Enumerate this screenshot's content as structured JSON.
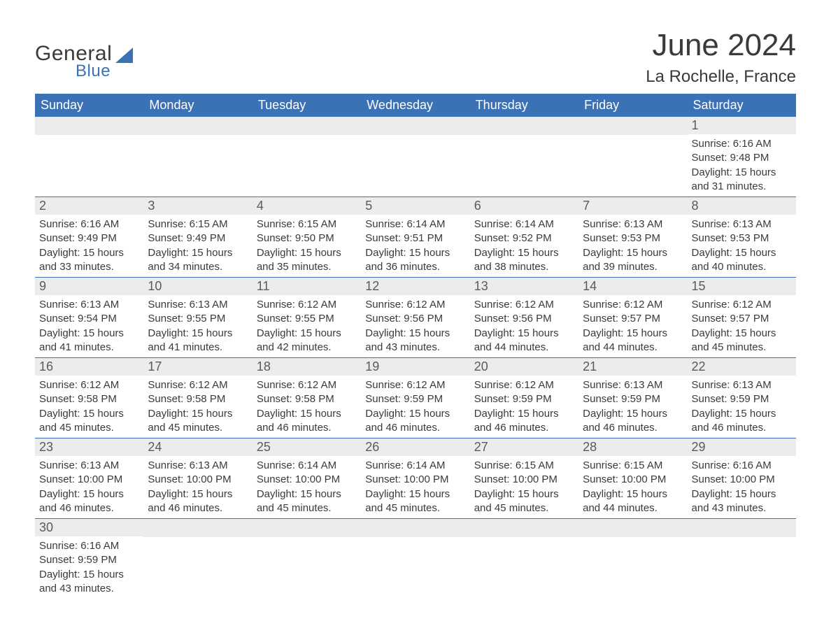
{
  "logo": {
    "text1": "General",
    "text2": "Blue"
  },
  "title": "June 2024",
  "location": "La Rochelle, France",
  "colors": {
    "header_bg": "#3a72b5",
    "header_text": "#ffffff",
    "daynum_bg": "#ececec",
    "row_border": "#3a72b5",
    "body_text": "#3a3a3a"
  },
  "dayHeaders": [
    "Sunday",
    "Monday",
    "Tuesday",
    "Wednesday",
    "Thursday",
    "Friday",
    "Saturday"
  ],
  "weeks": [
    [
      null,
      null,
      null,
      null,
      null,
      null,
      {
        "n": "1",
        "sunrise": "Sunrise: 6:16 AM",
        "sunset": "Sunset: 9:48 PM",
        "daylight": "Daylight: 15 hours and 31 minutes."
      }
    ],
    [
      {
        "n": "2",
        "sunrise": "Sunrise: 6:16 AM",
        "sunset": "Sunset: 9:49 PM",
        "daylight": "Daylight: 15 hours and 33 minutes."
      },
      {
        "n": "3",
        "sunrise": "Sunrise: 6:15 AM",
        "sunset": "Sunset: 9:49 PM",
        "daylight": "Daylight: 15 hours and 34 minutes."
      },
      {
        "n": "4",
        "sunrise": "Sunrise: 6:15 AM",
        "sunset": "Sunset: 9:50 PM",
        "daylight": "Daylight: 15 hours and 35 minutes."
      },
      {
        "n": "5",
        "sunrise": "Sunrise: 6:14 AM",
        "sunset": "Sunset: 9:51 PM",
        "daylight": "Daylight: 15 hours and 36 minutes."
      },
      {
        "n": "6",
        "sunrise": "Sunrise: 6:14 AM",
        "sunset": "Sunset: 9:52 PM",
        "daylight": "Daylight: 15 hours and 38 minutes."
      },
      {
        "n": "7",
        "sunrise": "Sunrise: 6:13 AM",
        "sunset": "Sunset: 9:53 PM",
        "daylight": "Daylight: 15 hours and 39 minutes."
      },
      {
        "n": "8",
        "sunrise": "Sunrise: 6:13 AM",
        "sunset": "Sunset: 9:53 PM",
        "daylight": "Daylight: 15 hours and 40 minutes."
      }
    ],
    [
      {
        "n": "9",
        "sunrise": "Sunrise: 6:13 AM",
        "sunset": "Sunset: 9:54 PM",
        "daylight": "Daylight: 15 hours and 41 minutes."
      },
      {
        "n": "10",
        "sunrise": "Sunrise: 6:13 AM",
        "sunset": "Sunset: 9:55 PM",
        "daylight": "Daylight: 15 hours and 41 minutes."
      },
      {
        "n": "11",
        "sunrise": "Sunrise: 6:12 AM",
        "sunset": "Sunset: 9:55 PM",
        "daylight": "Daylight: 15 hours and 42 minutes."
      },
      {
        "n": "12",
        "sunrise": "Sunrise: 6:12 AM",
        "sunset": "Sunset: 9:56 PM",
        "daylight": "Daylight: 15 hours and 43 minutes."
      },
      {
        "n": "13",
        "sunrise": "Sunrise: 6:12 AM",
        "sunset": "Sunset: 9:56 PM",
        "daylight": "Daylight: 15 hours and 44 minutes."
      },
      {
        "n": "14",
        "sunrise": "Sunrise: 6:12 AM",
        "sunset": "Sunset: 9:57 PM",
        "daylight": "Daylight: 15 hours and 44 minutes."
      },
      {
        "n": "15",
        "sunrise": "Sunrise: 6:12 AM",
        "sunset": "Sunset: 9:57 PM",
        "daylight": "Daylight: 15 hours and 45 minutes."
      }
    ],
    [
      {
        "n": "16",
        "sunrise": "Sunrise: 6:12 AM",
        "sunset": "Sunset: 9:58 PM",
        "daylight": "Daylight: 15 hours and 45 minutes."
      },
      {
        "n": "17",
        "sunrise": "Sunrise: 6:12 AM",
        "sunset": "Sunset: 9:58 PM",
        "daylight": "Daylight: 15 hours and 45 minutes."
      },
      {
        "n": "18",
        "sunrise": "Sunrise: 6:12 AM",
        "sunset": "Sunset: 9:58 PM",
        "daylight": "Daylight: 15 hours and 46 minutes."
      },
      {
        "n": "19",
        "sunrise": "Sunrise: 6:12 AM",
        "sunset": "Sunset: 9:59 PM",
        "daylight": "Daylight: 15 hours and 46 minutes."
      },
      {
        "n": "20",
        "sunrise": "Sunrise: 6:12 AM",
        "sunset": "Sunset: 9:59 PM",
        "daylight": "Daylight: 15 hours and 46 minutes."
      },
      {
        "n": "21",
        "sunrise": "Sunrise: 6:13 AM",
        "sunset": "Sunset: 9:59 PM",
        "daylight": "Daylight: 15 hours and 46 minutes."
      },
      {
        "n": "22",
        "sunrise": "Sunrise: 6:13 AM",
        "sunset": "Sunset: 9:59 PM",
        "daylight": "Daylight: 15 hours and 46 minutes."
      }
    ],
    [
      {
        "n": "23",
        "sunrise": "Sunrise: 6:13 AM",
        "sunset": "Sunset: 10:00 PM",
        "daylight": "Daylight: 15 hours and 46 minutes."
      },
      {
        "n": "24",
        "sunrise": "Sunrise: 6:13 AM",
        "sunset": "Sunset: 10:00 PM",
        "daylight": "Daylight: 15 hours and 46 minutes."
      },
      {
        "n": "25",
        "sunrise": "Sunrise: 6:14 AM",
        "sunset": "Sunset: 10:00 PM",
        "daylight": "Daylight: 15 hours and 45 minutes."
      },
      {
        "n": "26",
        "sunrise": "Sunrise: 6:14 AM",
        "sunset": "Sunset: 10:00 PM",
        "daylight": "Daylight: 15 hours and 45 minutes."
      },
      {
        "n": "27",
        "sunrise": "Sunrise: 6:15 AM",
        "sunset": "Sunset: 10:00 PM",
        "daylight": "Daylight: 15 hours and 45 minutes."
      },
      {
        "n": "28",
        "sunrise": "Sunrise: 6:15 AM",
        "sunset": "Sunset: 10:00 PM",
        "daylight": "Daylight: 15 hours and 44 minutes."
      },
      {
        "n": "29",
        "sunrise": "Sunrise: 6:16 AM",
        "sunset": "Sunset: 10:00 PM",
        "daylight": "Daylight: 15 hours and 43 minutes."
      }
    ],
    [
      {
        "n": "30",
        "sunrise": "Sunrise: 6:16 AM",
        "sunset": "Sunset: 9:59 PM",
        "daylight": "Daylight: 15 hours and 43 minutes."
      },
      null,
      null,
      null,
      null,
      null,
      null
    ]
  ]
}
